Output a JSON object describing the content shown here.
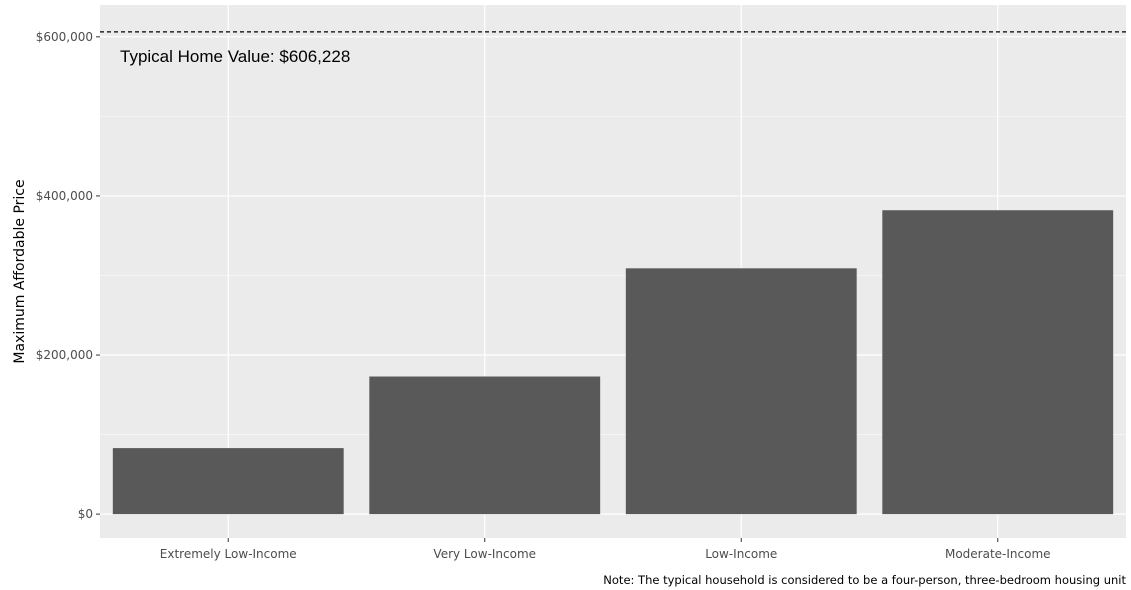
{
  "chart_data": {
    "type": "bar",
    "categories": [
      "Extremely Low-Income",
      "Very Low-Income",
      "Low-Income",
      "Moderate-Income"
    ],
    "values": [
      83000,
      173000,
      309000,
      382000
    ],
    "title": "",
    "xlabel": "",
    "ylabel": "Maximum Affordable Price",
    "ylim": [
      -30000,
      640000
    ],
    "y_ticks": [
      0,
      200000,
      400000,
      600000
    ],
    "y_tick_labels": [
      "$0",
      "$200,000",
      "$400,000",
      "$600,000"
    ],
    "grid": true,
    "reference_line": {
      "value": 606228,
      "style": "dashed",
      "label": "Typical Home Value: $606,228"
    },
    "caption": "Note: The typical household is considered to be a four-person, three-bedroom housing unit",
    "colors": {
      "panel": "#ebebeb",
      "grid_major": "#ffffff",
      "bar": "#595959",
      "reference_line": "#000000"
    }
  }
}
